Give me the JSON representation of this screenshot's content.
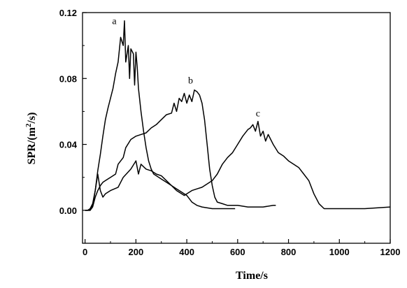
{
  "chart_data": {
    "type": "line",
    "xlabel": "Time/s",
    "ylabel": {
      "base": "SPR/(m",
      "sup": "2",
      "tail": "/s)"
    },
    "xlim": [
      -10,
      1200
    ],
    "ylim": [
      -0.02,
      0.12
    ],
    "xticks": [
      0,
      200,
      400,
      600,
      800,
      1000,
      1200
    ],
    "yticks": [
      0.0,
      0.04,
      0.08,
      0.12
    ],
    "ytick_labels": [
      "0.00",
      "0.04",
      "0.08",
      "0.12"
    ],
    "grid": false,
    "legend": "none",
    "line_color": "#000000",
    "series": [
      {
        "name": "a",
        "label_at": [
          115,
          0.113
        ],
        "points": [
          [
            0,
            0
          ],
          [
            10,
            0
          ],
          [
            20,
            0.001
          ],
          [
            30,
            0.004
          ],
          [
            40,
            0.012
          ],
          [
            50,
            0.024
          ],
          [
            60,
            0.034
          ],
          [
            70,
            0.045
          ],
          [
            80,
            0.055
          ],
          [
            90,
            0.062
          ],
          [
            100,
            0.068
          ],
          [
            110,
            0.074
          ],
          [
            120,
            0.083
          ],
          [
            130,
            0.09
          ],
          [
            140,
            0.105
          ],
          [
            150,
            0.1
          ],
          [
            155,
            0.115
          ],
          [
            160,
            0.09
          ],
          [
            170,
            0.1
          ],
          [
            175,
            0.08
          ],
          [
            180,
            0.098
          ],
          [
            190,
            0.095
          ],
          [
            195,
            0.076
          ],
          [
            200,
            0.096
          ],
          [
            205,
            0.087
          ],
          [
            210,
            0.074
          ],
          [
            220,
            0.06
          ],
          [
            230,
            0.048
          ],
          [
            240,
            0.038
          ],
          [
            250,
            0.03
          ],
          [
            260,
            0.025
          ],
          [
            270,
            0.022
          ],
          [
            280,
            0.021
          ],
          [
            290,
            0.02
          ],
          [
            300,
            0.019
          ],
          [
            320,
            0.017
          ],
          [
            340,
            0.015
          ],
          [
            360,
            0.013
          ],
          [
            380,
            0.011
          ],
          [
            400,
            0.009
          ],
          [
            420,
            0.005
          ],
          [
            440,
            0.003
          ],
          [
            460,
            0.002
          ],
          [
            500,
            0.001
          ],
          [
            560,
            0.001
          ],
          [
            590,
            0.001
          ]
        ]
      },
      {
        "name": "b",
        "label_at": [
          415,
          0.077
        ],
        "points": [
          [
            0,
            0
          ],
          [
            20,
            0
          ],
          [
            30,
            0.002
          ],
          [
            40,
            0.008
          ],
          [
            50,
            0.012
          ],
          [
            60,
            0.015
          ],
          [
            70,
            0.017
          ],
          [
            80,
            0.018
          ],
          [
            100,
            0.02
          ],
          [
            120,
            0.022
          ],
          [
            130,
            0.028
          ],
          [
            150,
            0.032
          ],
          [
            160,
            0.038
          ],
          [
            180,
            0.043
          ],
          [
            200,
            0.045
          ],
          [
            220,
            0.046
          ],
          [
            240,
            0.047
          ],
          [
            260,
            0.05
          ],
          [
            280,
            0.052
          ],
          [
            300,
            0.055
          ],
          [
            320,
            0.058
          ],
          [
            340,
            0.059
          ],
          [
            350,
            0.065
          ],
          [
            360,
            0.06
          ],
          [
            370,
            0.068
          ],
          [
            380,
            0.066
          ],
          [
            390,
            0.071
          ],
          [
            400,
            0.065
          ],
          [
            410,
            0.07
          ],
          [
            420,
            0.066
          ],
          [
            430,
            0.073
          ],
          [
            440,
            0.072
          ],
          [
            450,
            0.07
          ],
          [
            460,
            0.065
          ],
          [
            470,
            0.055
          ],
          [
            480,
            0.04
          ],
          [
            490,
            0.025
          ],
          [
            500,
            0.015
          ],
          [
            510,
            0.008
          ],
          [
            520,
            0.005
          ],
          [
            540,
            0.004
          ],
          [
            560,
            0.003
          ],
          [
            600,
            0.003
          ],
          [
            640,
            0.002
          ],
          [
            700,
            0.002
          ],
          [
            740,
            0.003
          ],
          [
            750,
            0.003
          ]
        ]
      },
      {
        "name": "c",
        "label_at": [
          680,
          0.057
        ],
        "points": [
          [
            0,
            0
          ],
          [
            20,
            0
          ],
          [
            30,
            0.003
          ],
          [
            40,
            0.012
          ],
          [
            50,
            0.022
          ],
          [
            60,
            0.012
          ],
          [
            70,
            0.008
          ],
          [
            80,
            0.01
          ],
          [
            100,
            0.012
          ],
          [
            130,
            0.014
          ],
          [
            150,
            0.02
          ],
          [
            180,
            0.025
          ],
          [
            200,
            0.03
          ],
          [
            210,
            0.022
          ],
          [
            220,
            0.028
          ],
          [
            240,
            0.025
          ],
          [
            260,
            0.024
          ],
          [
            280,
            0.022
          ],
          [
            300,
            0.021
          ],
          [
            320,
            0.018
          ],
          [
            340,
            0.015
          ],
          [
            360,
            0.012
          ],
          [
            380,
            0.01
          ],
          [
            390,
            0.009
          ],
          [
            400,
            0.01
          ],
          [
            420,
            0.012
          ],
          [
            440,
            0.013
          ],
          [
            460,
            0.014
          ],
          [
            480,
            0.016
          ],
          [
            500,
            0.018
          ],
          [
            520,
            0.022
          ],
          [
            540,
            0.028
          ],
          [
            560,
            0.032
          ],
          [
            580,
            0.035
          ],
          [
            600,
            0.04
          ],
          [
            620,
            0.045
          ],
          [
            640,
            0.049
          ],
          [
            650,
            0.05
          ],
          [
            660,
            0.052
          ],
          [
            670,
            0.048
          ],
          [
            680,
            0.054
          ],
          [
            690,
            0.045
          ],
          [
            700,
            0.048
          ],
          [
            710,
            0.042
          ],
          [
            720,
            0.046
          ],
          [
            740,
            0.04
          ],
          [
            760,
            0.035
          ],
          [
            780,
            0.033
          ],
          [
            800,
            0.03
          ],
          [
            820,
            0.028
          ],
          [
            840,
            0.026
          ],
          [
            860,
            0.022
          ],
          [
            880,
            0.018
          ],
          [
            900,
            0.01
          ],
          [
            920,
            0.004
          ],
          [
            940,
            0.001
          ],
          [
            960,
            0.001
          ],
          [
            1000,
            0.001
          ],
          [
            1100,
            0.001
          ],
          [
            1200,
            0.002
          ]
        ]
      }
    ]
  }
}
